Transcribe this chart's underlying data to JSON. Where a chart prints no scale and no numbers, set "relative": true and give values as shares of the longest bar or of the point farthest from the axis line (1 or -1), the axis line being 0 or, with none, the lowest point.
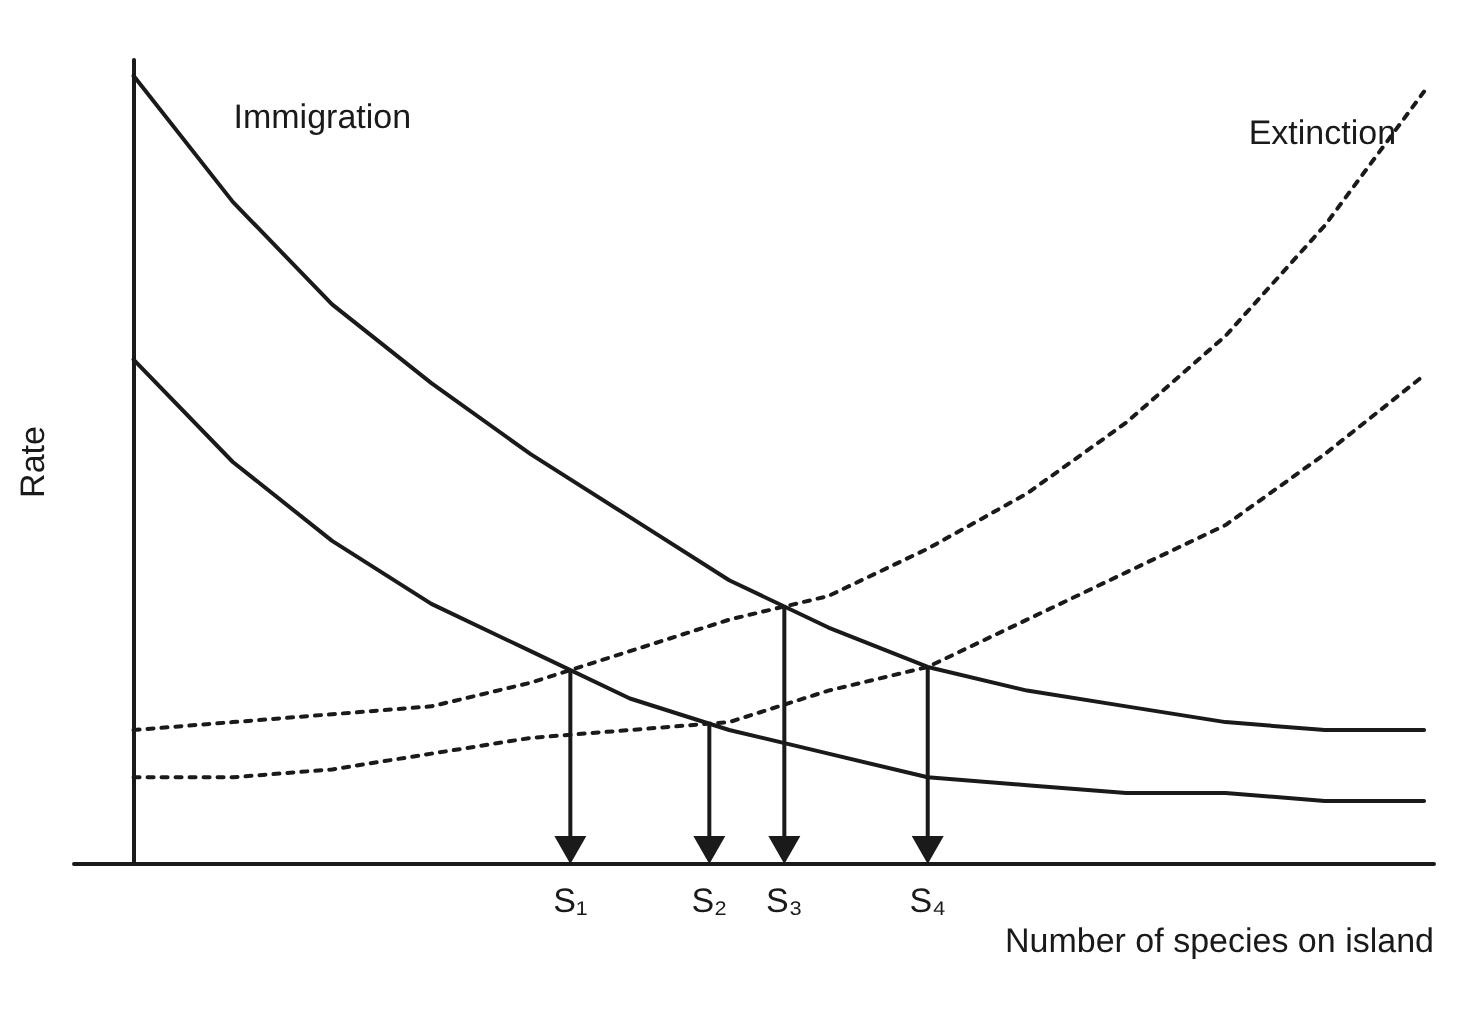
{
  "chart_data": {
    "type": "line",
    "relative": true,
    "xlabel": "Number of species on island",
    "ylabel": "Rate",
    "categories": [
      null,
      null,
      null,
      null,
      null,
      null,
      null,
      null,
      null,
      null,
      null,
      null,
      null,
      null
    ],
    "series": [
      {
        "name": "Immigration",
        "color": "#1a1a1a",
        "line_style": "solid",
        "values": [
          1,
          0.84,
          0.71,
          0.61,
          0.52,
          0.44,
          0.36,
          0.3,
          0.25,
          0.22,
          0.2,
          0.18,
          0.17,
          0.17
        ]
      },
      {
        "color": "#1a1a1a",
        "line_style": "solid",
        "values": [
          0.64,
          0.51,
          0.41,
          0.33,
          0.27,
          0.21,
          0.17,
          0.14,
          0.11,
          0.1,
          0.09,
          0.09,
          0.08,
          0.08
        ]
      },
      {
        "name": "Extinction",
        "color": "#1a1a1a",
        "line_style": "dotted",
        "values": [
          0.17,
          0.18,
          0.19,
          0.2,
          0.23,
          0.27,
          0.31,
          0.34,
          0.4,
          0.47,
          0.56,
          0.67,
          0.81,
          0.98
        ]
      },
      {
        "color": "#1a1a1a",
        "line_style": "dotted",
        "values": [
          0.11,
          0.11,
          0.12,
          0.14,
          0.16,
          0.17,
          0.18,
          0.22,
          0.25,
          0.31,
          0.37,
          0.43,
          0.52,
          0.62
        ]
      }
    ],
    "annotations": [
      "S₁",
      "S₂",
      "S₃",
      "S₄"
    ],
    "marker": "none",
    "grid": false,
    "legend": false
  }
}
